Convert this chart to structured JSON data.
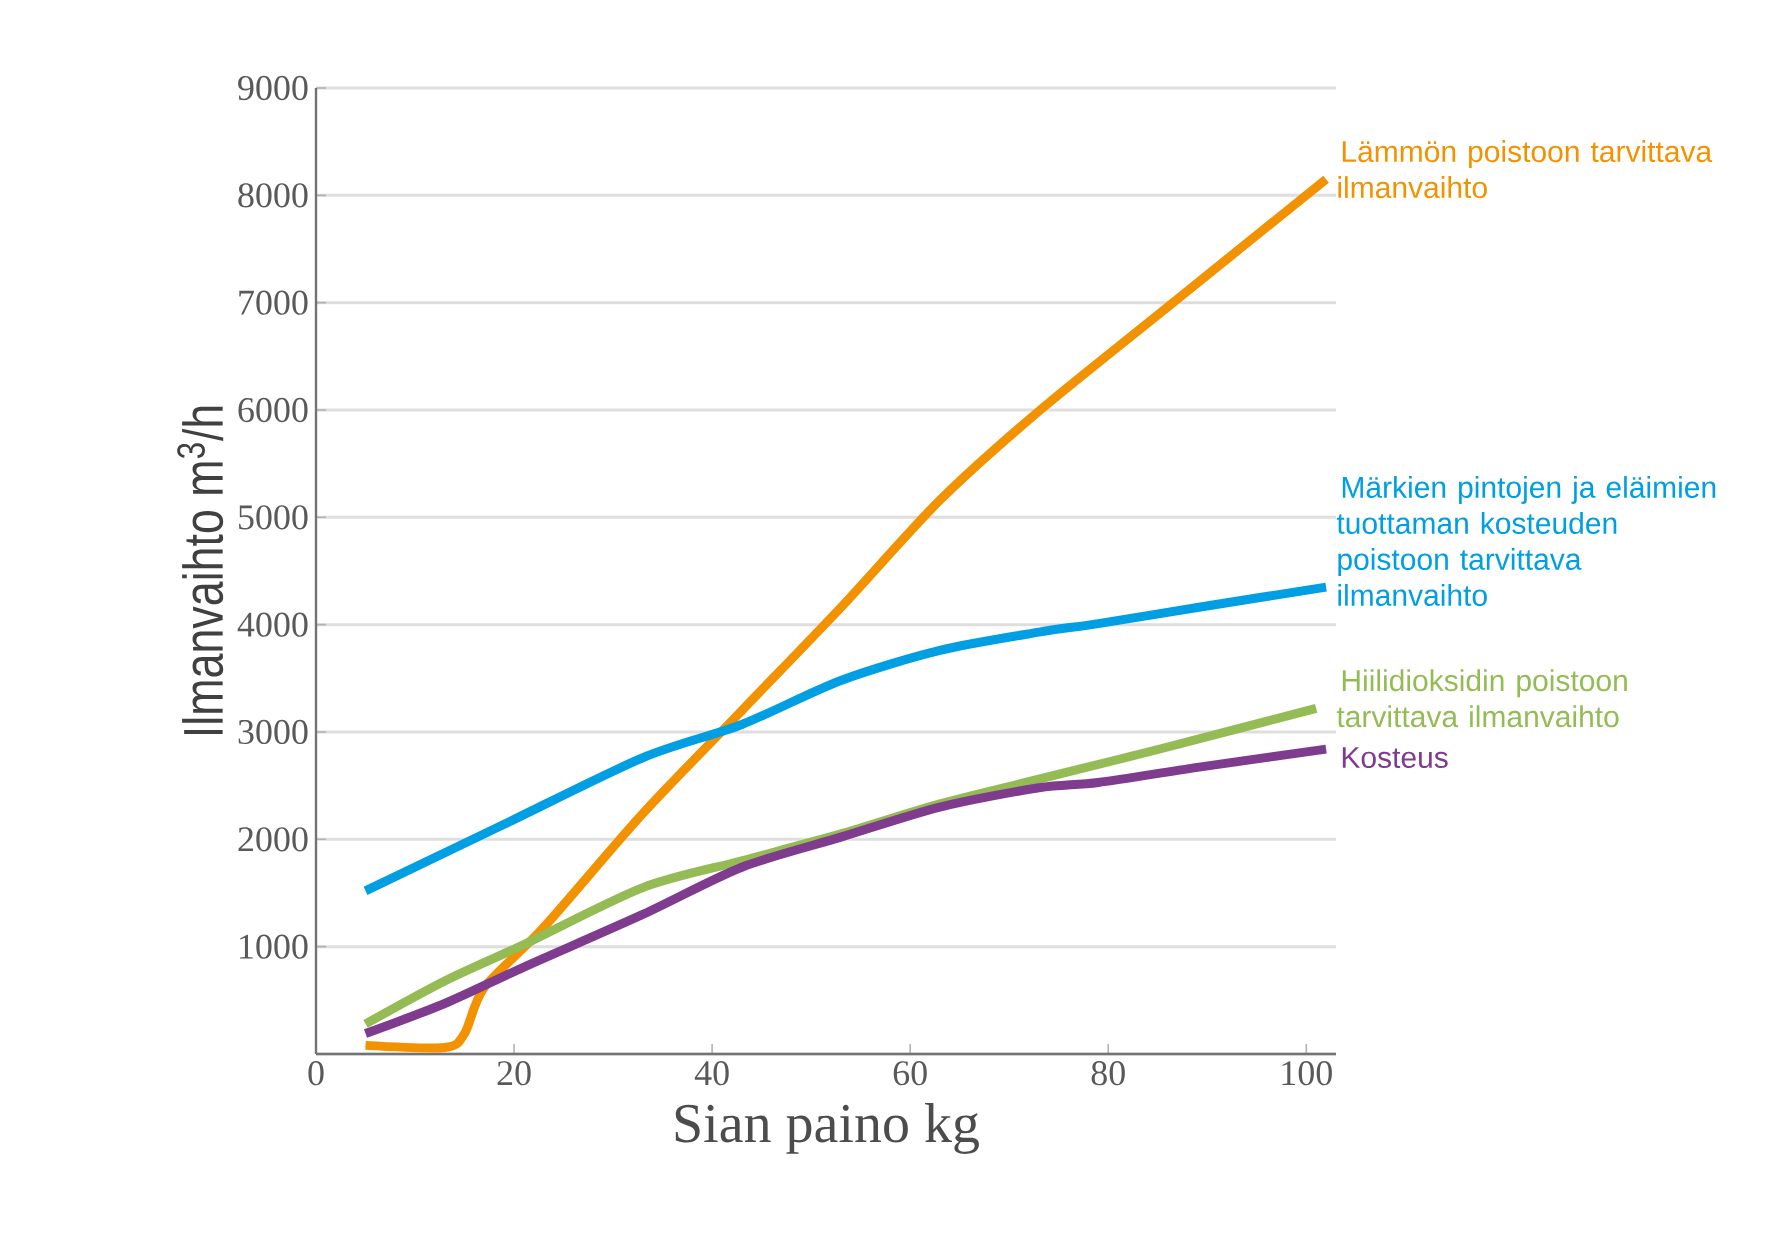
{
  "chart_data": {
    "type": "line",
    "xlabel": "Sian paino kg",
    "ylabel": "Ilmanvaihto m$^{3}$/h",
    "xlim": [
      0,
      103
    ],
    "ylim": [
      0,
      9000
    ],
    "xticks": [
      0,
      20,
      40,
      60,
      80,
      100
    ],
    "yticks": [
      {
        "value": 0,
        "label": null
      },
      1000,
      2000,
      3000,
      4000,
      5000,
      6000,
      7000,
      8000,
      9000
    ],
    "grid": "y",
    "legend": false,
    "marker": "none",
    "line_style": "solid",
    "series": [
      {
        "name": "Lämmön poistoon tarvittava ilmanvaihto",
        "color": "#f39200",
        "x": [
          5,
          13,
          15,
          17,
          23,
          33,
          43,
          53,
          63,
          73,
          86,
          102
        ],
        "values": [
          80,
          60,
          190,
          620,
          1180,
          2240,
          3200,
          4160,
          5160,
          5990,
          6960,
          8150
        ]
      },
      {
        "name": "Märkien pintojen ja eläimien tuottaman kosteuden poistoon tarvittava ilmanvaihto",
        "color": "#009fe3",
        "x": [
          5,
          19,
          33,
          43,
          53,
          63,
          73,
          79,
          89,
          102
        ],
        "values": [
          1520,
          2140,
          2760,
          3070,
          3480,
          3760,
          3930,
          4010,
          4160,
          4350
        ]
      },
      {
        "name": "Hiilidioksidin poistoon tarvittava ilmanvaihto",
        "color": "#95bb55",
        "x": [
          5,
          13,
          21,
          33,
          43,
          53,
          63,
          73,
          86,
          101
        ],
        "values": [
          280,
          680,
          1020,
          1550,
          1800,
          2050,
          2330,
          2560,
          2860,
          3220
        ]
      },
      {
        "name": "Kosteus",
        "color": "#7f3b8e",
        "x": [
          5,
          13,
          21,
          33,
          43,
          53,
          63,
          73,
          79,
          89,
          102
        ],
        "values": [
          190,
          470,
          810,
          1300,
          1740,
          2020,
          2300,
          2480,
          2530,
          2670,
          2840
        ]
      }
    ]
  }
}
